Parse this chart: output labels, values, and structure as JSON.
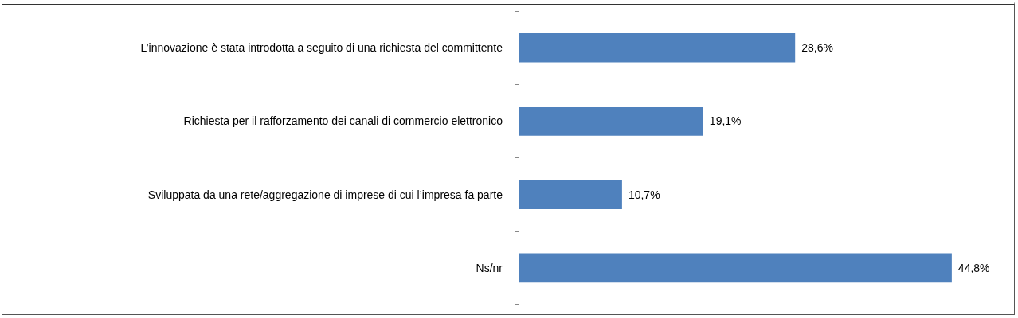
{
  "chart_data": {
    "type": "bar",
    "orientation": "horizontal",
    "categories": [
      "L’innovazione è stata introdotta a seguito di una richiesta del committente",
      "Richiesta per il rafforzamento dei canali di commercio elettronico",
      "Sviluppata da una rete/aggregazione di imprese di cui l’impresa fa parte",
      "Ns/nr"
    ],
    "values": [
      28.6,
      19.1,
      10.7,
      44.8
    ],
    "value_labels": [
      "28,6%",
      "19,1%",
      "10,7%",
      "44,8%"
    ],
    "color": "#4f81bd"
  }
}
